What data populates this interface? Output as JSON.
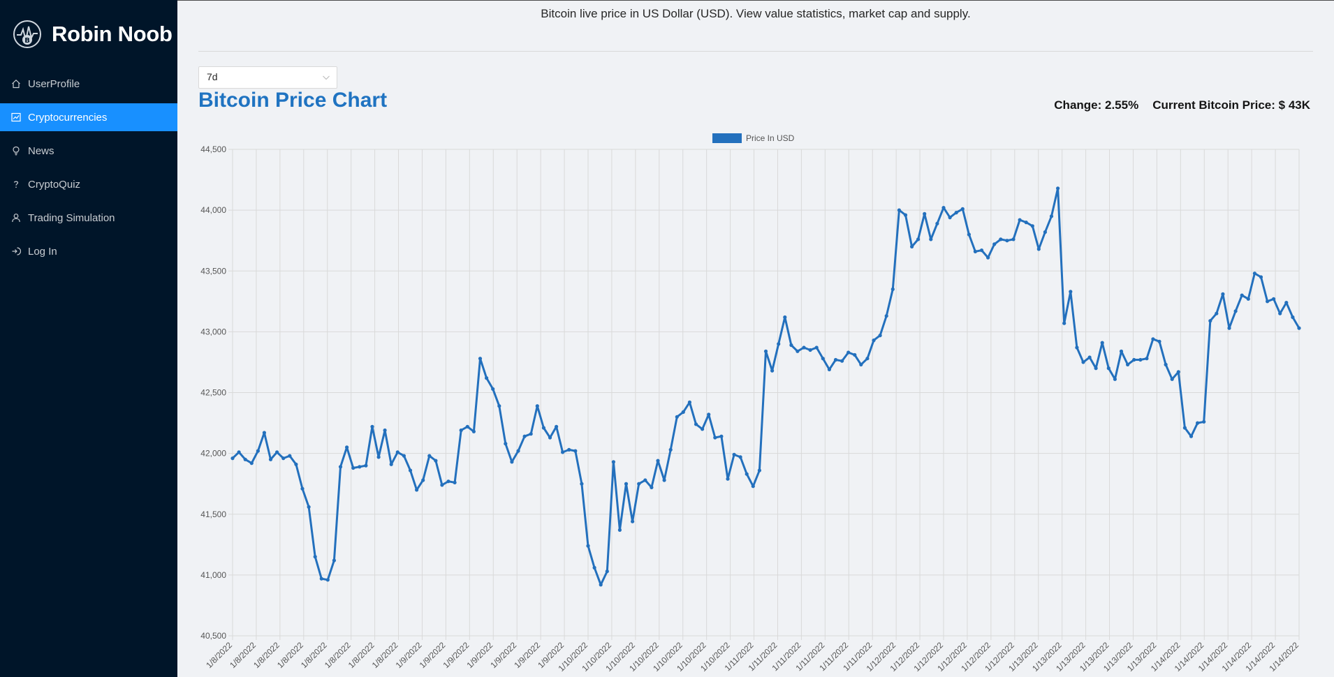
{
  "sidebar": {
    "brand": "Robin Noob",
    "items": [
      {
        "label": "UserProfile",
        "icon": "home-icon"
      },
      {
        "label": "Cryptocurrencies",
        "icon": "stock-chart-icon",
        "active": true
      },
      {
        "label": "News",
        "icon": "bulb-icon"
      },
      {
        "label": "CryptoQuiz",
        "icon": "question-icon"
      },
      {
        "label": "Trading Simulation",
        "icon": "user-icon"
      },
      {
        "label": "Log In",
        "icon": "login-icon"
      }
    ]
  },
  "header": {
    "description": "Bitcoin live price in US Dollar (USD). View value statistics, market cap and supply."
  },
  "controls": {
    "timeperiod": "7d"
  },
  "chart_header": {
    "title": "Bitcoin Price Chart",
    "change": "Change: 2.55%",
    "current_price": "Current Bitcoin Price: $ 43K"
  },
  "colors": {
    "sidebar_bg": "#001529",
    "accent": "#1890ff",
    "title": "#1f73c1",
    "line": "#2370bd"
  },
  "chart_data": {
    "type": "line",
    "title": "",
    "xlabel": "",
    "ylabel": "",
    "legend": "top-center",
    "grid": true,
    "ylim": [
      40500,
      44500
    ],
    "yticks": [
      "40,500",
      "41,000",
      "41,500",
      "42,000",
      "42,500",
      "43,000",
      "43,500",
      "44,000",
      "44,500"
    ],
    "xtick_labels": [
      "1/8/2022",
      "1/8/2022",
      "1/8/2022",
      "1/8/2022",
      "1/8/2022",
      "1/8/2022",
      "1/8/2022",
      "1/8/2022",
      "1/9/2022",
      "1/9/2022",
      "1/9/2022",
      "1/9/2022",
      "1/9/2022",
      "1/9/2022",
      "1/9/2022",
      "1/10/2022",
      "1/10/2022",
      "1/10/2022",
      "1/10/2022",
      "1/10/2022",
      "1/10/2022",
      "1/10/2022",
      "1/11/2022",
      "1/11/2022",
      "1/11/2022",
      "1/11/2022",
      "1/11/2022",
      "1/11/2022",
      "1/12/2022",
      "1/12/2022",
      "1/12/2022",
      "1/12/2022",
      "1/12/2022",
      "1/12/2022",
      "1/13/2022",
      "1/13/2022",
      "1/13/2022",
      "1/13/2022",
      "1/13/2022",
      "1/13/2022",
      "1/14/2022",
      "1/14/2022",
      "1/14/2022",
      "1/14/2022",
      "1/14/2022",
      "1/14/2022"
    ],
    "series": [
      {
        "name": "Price In USD",
        "values": [
          41960,
          42010,
          41950,
          41920,
          42020,
          42170,
          41950,
          42010,
          41960,
          41980,
          41910,
          41710,
          41560,
          41150,
          40970,
          40960,
          41120,
          41890,
          42050,
          41880,
          41890,
          41900,
          42220,
          41970,
          42190,
          41910,
          42010,
          41980,
          41860,
          41700,
          41780,
          41980,
          41940,
          41740,
          41770,
          41760,
          42190,
          42220,
          42180,
          42780,
          42620,
          42530,
          42390,
          42080,
          41930,
          42020,
          42140,
          42160,
          42390,
          42210,
          42130,
          42220,
          42010,
          42030,
          42020,
          41750,
          41240,
          41060,
          40920,
          41030,
          41930,
          41370,
          41750,
          41440,
          41750,
          41780,
          41720,
          41940,
          41780,
          42030,
          42300,
          42340,
          42420,
          42240,
          42200,
          42320,
          42130,
          42140,
          41790,
          41990,
          41970,
          41830,
          41730,
          41860,
          42840,
          42680,
          42900,
          43120,
          42890,
          42840,
          42870,
          42850,
          42870,
          42780,
          42690,
          42770,
          42760,
          42830,
          42810,
          42730,
          42780,
          42930,
          42970,
          43130,
          43350,
          44000,
          43960,
          43700,
          43760,
          43970,
          43760,
          43890,
          44020,
          43940,
          43980,
          44010,
          43800,
          43660,
          43670,
          43610,
          43720,
          43760,
          43750,
          43760,
          43920,
          43900,
          43870,
          43680,
          43820,
          43950,
          44180,
          43070,
          43330,
          42870,
          42750,
          42790,
          42700,
          42910,
          42700,
          42610,
          42840,
          42730,
          42770,
          42770,
          42780,
          42940,
          42920,
          42730,
          42610,
          42670,
          42210,
          42140,
          42250,
          42260,
          43090,
          43150,
          43310,
          43030,
          43170,
          43300,
          43270,
          43480,
          43450,
          43250,
          43270,
          43150,
          43240,
          43120,
          43030
        ]
      }
    ]
  }
}
